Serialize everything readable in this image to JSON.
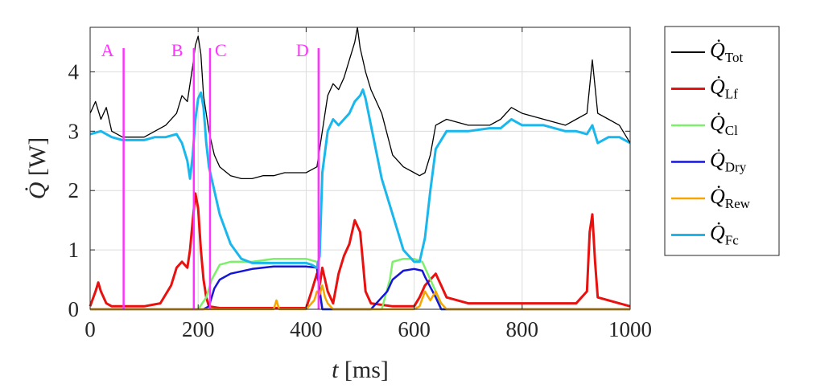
{
  "chart_data": {
    "type": "line",
    "xlabel": {
      "var": "t",
      "unit": "[ms]"
    },
    "ylabel": {
      "var": "Q",
      "unit": "[W]"
    },
    "xlim": [
      0,
      1000
    ],
    "ylim": [
      0,
      4.75
    ],
    "xticks": [
      0,
      200,
      400,
      600,
      800,
      1000
    ],
    "yticks": [
      0,
      1,
      2,
      3,
      4
    ],
    "grid": true,
    "legend_position": "right-outside",
    "markers": [
      {
        "label": "A",
        "x": 62,
        "color": "#ff33ff"
      },
      {
        "label": "B",
        "x": 192,
        "color": "#ff33ff"
      },
      {
        "label": "C",
        "x": 222,
        "color": "#ff33ff"
      },
      {
        "label": "D",
        "x": 423,
        "color": "#ff33ff"
      }
    ],
    "series": [
      {
        "name": "Q̇Tot",
        "sub": "Tot",
        "color": "#000000",
        "width": 1.3,
        "x": [
          0,
          10,
          20,
          30,
          40,
          60,
          80,
          100,
          120,
          140,
          160,
          170,
          180,
          190,
          195,
          200,
          205,
          210,
          220,
          230,
          240,
          260,
          280,
          300,
          320,
          340,
          360,
          380,
          400,
          410,
          420,
          430,
          440,
          450,
          460,
          470,
          480,
          490,
          495,
          500,
          505,
          510,
          520,
          540,
          560,
          580,
          600,
          610,
          620,
          630,
          640,
          660,
          700,
          740,
          760,
          780,
          800,
          840,
          880,
          900,
          920,
          930,
          940,
          960,
          980,
          1000
        ],
        "y": [
          3.3,
          3.5,
          3.2,
          3.4,
          3.0,
          2.9,
          2.9,
          2.9,
          3.0,
          3.1,
          3.3,
          3.6,
          3.5,
          4.1,
          4.45,
          4.6,
          4.3,
          3.6,
          3.0,
          2.6,
          2.4,
          2.25,
          2.2,
          2.2,
          2.25,
          2.25,
          2.3,
          2.3,
          2.3,
          2.35,
          2.4,
          3.0,
          3.6,
          3.8,
          3.7,
          3.9,
          4.2,
          4.5,
          4.75,
          4.4,
          4.2,
          4.0,
          3.7,
          3.3,
          2.6,
          2.4,
          2.3,
          2.25,
          2.3,
          2.6,
          3.1,
          3.2,
          3.1,
          3.1,
          3.2,
          3.4,
          3.3,
          3.2,
          3.1,
          3.2,
          3.3,
          4.2,
          3.3,
          3.2,
          3.1,
          2.8
        ]
      },
      {
        "name": "Q̇Lf",
        "sub": "Lf",
        "color": "#e8110f",
        "width": 3,
        "x": [
          0,
          10,
          15,
          20,
          30,
          40,
          60,
          100,
          130,
          150,
          160,
          170,
          180,
          185,
          190,
          195,
          200,
          205,
          210,
          215,
          220,
          240,
          300,
          400,
          410,
          420,
          425,
          430,
          440,
          450,
          460,
          470,
          480,
          490,
          500,
          505,
          510,
          520,
          560,
          600,
          610,
          620,
          640,
          650,
          660,
          700,
          800,
          900,
          920,
          925,
          930,
          935,
          940,
          1000
        ],
        "y": [
          0.05,
          0.3,
          0.45,
          0.3,
          0.1,
          0.05,
          0.05,
          0.05,
          0.1,
          0.4,
          0.7,
          0.8,
          0.7,
          1.0,
          1.5,
          1.95,
          1.7,
          1.0,
          0.5,
          0.2,
          0.05,
          0.02,
          0.02,
          0.02,
          0.3,
          0.6,
          0.4,
          0.7,
          0.3,
          0.1,
          0.6,
          0.9,
          1.1,
          1.5,
          1.3,
          0.8,
          0.3,
          0.1,
          0.05,
          0.05,
          0.2,
          0.4,
          0.6,
          0.4,
          0.2,
          0.1,
          0.1,
          0.1,
          0.3,
          1.3,
          1.6,
          0.8,
          0.2,
          0.05
        ]
      },
      {
        "name": "Q̇Cl",
        "sub": "Cl",
        "color": "#7cf06a",
        "width": 2.5,
        "x": [
          0,
          200,
          215,
          225,
          240,
          260,
          300,
          340,
          380,
          400,
          420,
          425,
          430,
          500,
          540,
          555,
          560,
          580,
          600,
          615,
          620,
          640,
          650,
          1000
        ],
        "y": [
          0,
          0,
          0.2,
          0.5,
          0.75,
          0.8,
          0.8,
          0.85,
          0.85,
          0.85,
          0.8,
          0.4,
          0,
          0,
          0,
          0.5,
          0.8,
          0.85,
          0.85,
          0.8,
          0.7,
          0.3,
          0,
          0
        ]
      },
      {
        "name": "Q̇Dry",
        "sub": "Dry",
        "color": "#1515d8",
        "width": 2.5,
        "x": [
          0,
          210,
          220,
          230,
          240,
          260,
          300,
          340,
          380,
          400,
          420,
          425,
          430,
          520,
          550,
          560,
          580,
          600,
          615,
          620,
          640,
          650,
          1000
        ],
        "y": [
          0,
          0,
          0.05,
          0.35,
          0.5,
          0.6,
          0.68,
          0.72,
          0.72,
          0.72,
          0.7,
          0.3,
          0,
          0,
          0.3,
          0.5,
          0.65,
          0.68,
          0.65,
          0.55,
          0.2,
          0,
          0
        ]
      },
      {
        "name": "Q̇Rew",
        "sub": "Rew",
        "color": "#f6a600",
        "width": 2.5,
        "x": [
          0,
          340,
          345,
          350,
          355,
          400,
          415,
          420,
          425,
          430,
          435,
          440,
          450,
          460,
          470,
          600,
          610,
          620,
          630,
          640,
          650,
          660,
          1000
        ],
        "y": [
          0,
          0,
          0.15,
          0,
          0,
          0,
          0.15,
          0.3,
          0.25,
          0.4,
          0.2,
          0.1,
          0,
          0,
          0,
          0,
          0.05,
          0.3,
          0.15,
          0.3,
          0.1,
          0,
          0
        ]
      },
      {
        "name": "Q̇Fc",
        "sub": "Fc",
        "color": "#1ab7ed",
        "width": 3,
        "x": [
          0,
          20,
          40,
          60,
          80,
          100,
          120,
          140,
          160,
          170,
          180,
          185,
          190,
          195,
          200,
          205,
          210,
          215,
          220,
          230,
          240,
          260,
          280,
          300,
          340,
          380,
          400,
          410,
          420,
          425,
          430,
          440,
          450,
          460,
          470,
          480,
          490,
          500,
          505,
          510,
          520,
          540,
          560,
          580,
          600,
          610,
          620,
          630,
          640,
          660,
          700,
          740,
          760,
          780,
          800,
          840,
          880,
          900,
          920,
          930,
          940,
          960,
          980,
          1000
        ],
        "y": [
          2.95,
          3.0,
          2.9,
          2.85,
          2.85,
          2.85,
          2.9,
          2.9,
          2.95,
          2.8,
          2.5,
          2.2,
          2.6,
          3.2,
          3.55,
          3.65,
          3.4,
          2.8,
          2.4,
          2.0,
          1.6,
          1.1,
          0.85,
          0.78,
          0.78,
          0.78,
          0.78,
          0.75,
          0.7,
          0.9,
          2.3,
          3.0,
          3.2,
          3.1,
          3.2,
          3.3,
          3.5,
          3.6,
          3.7,
          3.55,
          3.1,
          2.2,
          1.6,
          1.0,
          0.8,
          0.8,
          1.2,
          2.0,
          2.7,
          3.0,
          3.0,
          3.05,
          3.05,
          3.2,
          3.1,
          3.1,
          3.0,
          3.0,
          2.95,
          3.1,
          2.8,
          2.9,
          2.9,
          2.8
        ]
      }
    ]
  }
}
